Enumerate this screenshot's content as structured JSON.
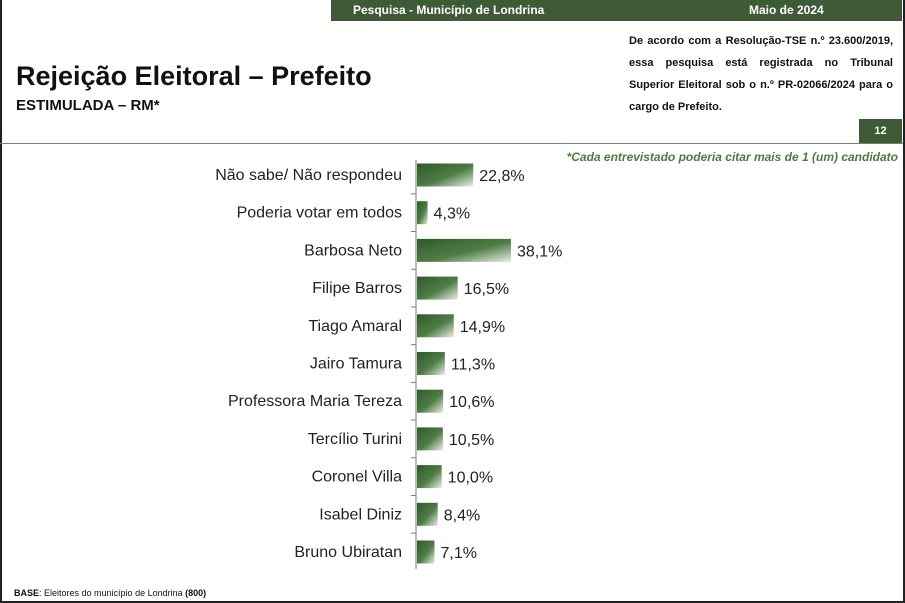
{
  "header": {
    "survey_label": "Pesquisa - Município de Londrina",
    "date_label": "Maio de 2024",
    "title": "Rejeição Eleitoral – Prefeito",
    "subtitle": "ESTIMULADA – RM*",
    "legal_text": "De acordo com a Resolução-TSE n.º 23.600/2019, essa pesquisa está registrada no Tribunal Superior Eleitoral sob o n.º PR-02066/2024 para o cargo de Prefeito.",
    "page_number": "12",
    "note": "*Cada entrevistado poderia citar mais de 1 (um) candidato"
  },
  "footer": {
    "base_label": "BASE",
    "base_text": ": Eleitores do município de Londrina ",
    "base_count": "(800)"
  },
  "colors": {
    "bar_dark": "#2f5a2a",
    "bar_light": "#e8efe4",
    "header_green": "#3e5a37",
    "note_green": "#4f7a3f"
  },
  "chart_data": {
    "type": "bar",
    "orientation": "horizontal",
    "categories": [
      "Não sabe/ Não respondeu",
      "Poderia votar em todos",
      "Barbosa Neto",
      "Filipe Barros",
      "Tiago Amaral",
      "Jairo Tamura",
      "Professora Maria Tereza",
      "Tercílio Turini",
      "Coronel Villa",
      "Isabel Diniz",
      "Bruno Ubiratan"
    ],
    "values": [
      22.8,
      4.3,
      38.1,
      16.5,
      14.9,
      11.3,
      10.6,
      10.5,
      10.0,
      8.4,
      7.1
    ],
    "labels": [
      "22,8%",
      "4,3%",
      "38,1%",
      "16,5%",
      "14,9%",
      "11,3%",
      "10,6%",
      "10,5%",
      "10,0%",
      "8,4%",
      "7,1%"
    ],
    "title": "",
    "xlabel": "",
    "ylabel": "",
    "xlim": [
      0,
      38.1
    ],
    "grid": false,
    "legend": "none"
  }
}
